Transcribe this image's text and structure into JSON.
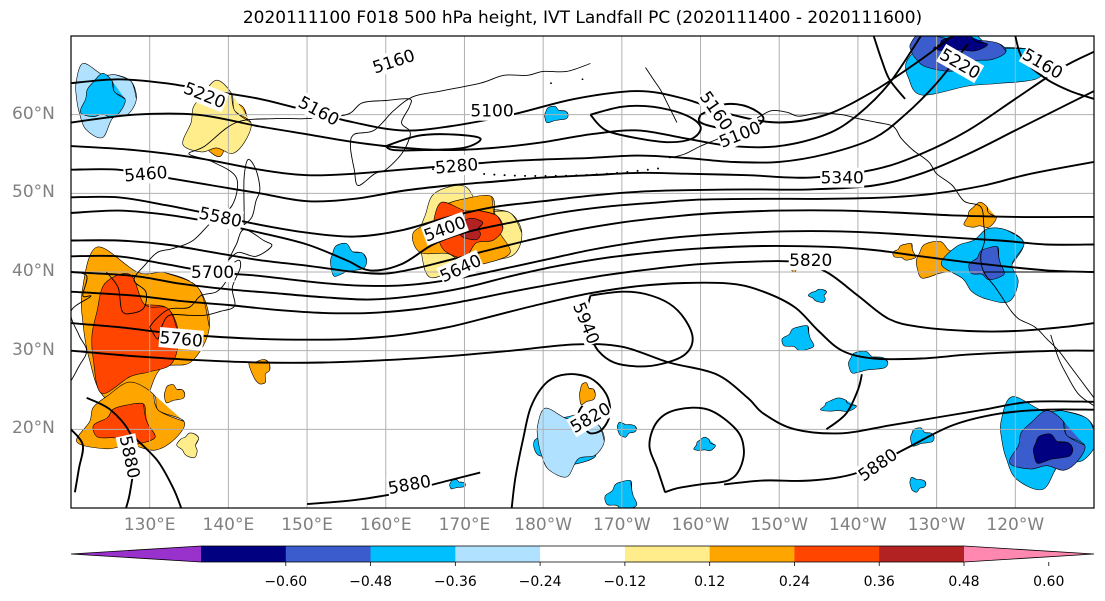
{
  "title": "2020111100 F018 500 hPa height, IVT Landfall PC (2020111400 - 2020111600)",
  "lat_labels": [
    {
      "text": "60°N",
      "lat": 60
    },
    {
      "text": "50°N",
      "lat": 50
    },
    {
      "text": "40°N",
      "lat": 40
    },
    {
      "text": "30°N",
      "lat": 30
    },
    {
      "text": "20°N",
      "lat": 20
    }
  ],
  "lon_labels": [
    {
      "text": "130°E",
      "lon": 130
    },
    {
      "text": "140°E",
      "lon": 140
    },
    {
      "text": "150°E",
      "lon": 150
    },
    {
      "text": "160°E",
      "lon": 160
    },
    {
      "text": "170°E",
      "lon": 170
    },
    {
      "text": "180°W",
      "lon": 180
    },
    {
      "text": "170°W",
      "lon": 190
    },
    {
      "text": "160°W",
      "lon": 200
    },
    {
      "text": "150°W",
      "lon": 210
    },
    {
      "text": "140°W",
      "lon": 220
    },
    {
      "text": "130°W",
      "lon": 230
    },
    {
      "text": "120°W",
      "lon": 240
    }
  ],
  "map_extent": {
    "lon_min": 120,
    "lon_max": 250,
    "lat_min": 10,
    "lat_max": 70
  },
  "colorbar": {
    "colors": [
      "#9932cc",
      "#000080",
      "#3a5ccc",
      "#00bfff",
      "#b0e2ff",
      "#ffffff",
      "#ffec8b",
      "#ffa500",
      "#ff4500",
      "#b22222",
      "#ff88b0"
    ],
    "ticks": [
      "−0.60",
      "−0.48",
      "−0.36",
      "−0.24",
      "−0.12",
      "0.12",
      "0.24",
      "0.36",
      "0.48",
      "0.60"
    ]
  },
  "contour_labels": [
    {
      "text": "5160",
      "lon": 161,
      "lat": 66.8,
      "rot": -18
    },
    {
      "text": "5220",
      "lon": 137,
      "lat": 62.5,
      "rot": 22
    },
    {
      "text": "5160",
      "lon": 151.5,
      "lat": 60.5,
      "rot": 28
    },
    {
      "text": "5100",
      "lon": 173.5,
      "lat": 60.5,
      "rot": 0
    },
    {
      "text": "5160",
      "lon": 202,
      "lat": 60.5,
      "rot": 55
    },
    {
      "text": "5100",
      "lon": 205,
      "lat": 57.5,
      "rot": -22
    },
    {
      "text": "5280",
      "lon": 169,
      "lat": 53.5,
      "rot": -5
    },
    {
      "text": "5460",
      "lon": 129.5,
      "lat": 52.5,
      "rot": -5
    },
    {
      "text": "5340",
      "lon": 218,
      "lat": 52,
      "rot": 0
    },
    {
      "text": "5580",
      "lon": 139,
      "lat": 47,
      "rot": 12
    },
    {
      "text": "5400",
      "lon": 167.5,
      "lat": 45.5,
      "rot": -20
    },
    {
      "text": "5640",
      "lon": 169.5,
      "lat": 40.5,
      "rot": -25
    },
    {
      "text": "5820",
      "lon": 214,
      "lat": 41.5,
      "rot": 0
    },
    {
      "text": "5700",
      "lon": 138,
      "lat": 40,
      "rot": 0
    },
    {
      "text": "5940",
      "lon": 185.5,
      "lat": 33.5,
      "rot": 68
    },
    {
      "text": "5760",
      "lon": 134,
      "lat": 31.5,
      "rot": 5
    },
    {
      "text": "5820",
      "lon": 186,
      "lat": 21.5,
      "rot": -30
    },
    {
      "text": "5880",
      "lon": 127.5,
      "lat": 16.5,
      "rot": 78
    },
    {
      "text": "5880",
      "lon": 163,
      "lat": 13,
      "rot": -10
    },
    {
      "text": "5880",
      "lon": 222.5,
      "lat": 15.5,
      "rot": -35
    },
    {
      "text": "5220",
      "lon": 233,
      "lat": 66.5,
      "rot": 30
    },
    {
      "text": "5160",
      "lon": 243.5,
      "lat": 66.5,
      "rot": 30
    }
  ]
}
